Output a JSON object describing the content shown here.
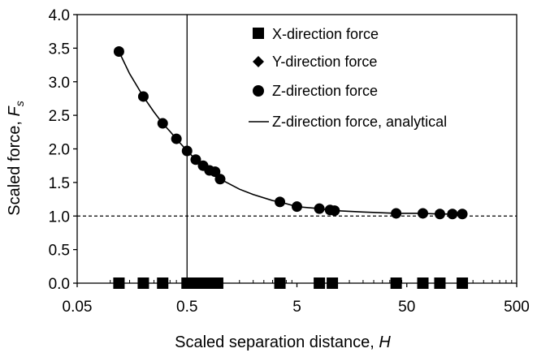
{
  "chart_data": {
    "type": "scatter",
    "xlabel": "Scaled separation distance, ",
    "xlabel_italic": "H",
    "ylabel": "Scaled force, ",
    "ylabel_italic": "F",
    "ylabel_sub": "s",
    "x_scale": "log",
    "xlim": [
      0.05,
      500
    ],
    "ylim": [
      0,
      4
    ],
    "x_ticks": [
      0.05,
      0.5,
      5,
      50,
      500
    ],
    "x_tick_labels": [
      "0.05",
      "0.5",
      "5",
      "50",
      "500"
    ],
    "y_ticks": [
      0,
      0.5,
      1,
      1.5,
      2,
      2.5,
      3,
      3.5,
      4
    ],
    "y_tick_labels": [
      "0.0",
      "0.5",
      "1.0",
      "1.5",
      "2.0",
      "2.5",
      "3.0",
      "3.5",
      "4.0"
    ],
    "grid": false,
    "reference_lines": [
      {
        "orientation": "horizontal",
        "value": 1.0,
        "style": "dashed"
      },
      {
        "orientation": "vertical",
        "value": 0.5,
        "style": "solid"
      }
    ],
    "legend_position": "top-right",
    "series": [
      {
        "name": "X-direction force",
        "marker": "square",
        "x": [
          0.12,
          0.2,
          0.3,
          0.5,
          0.55,
          0.6,
          0.75,
          0.85,
          0.95,
          3.5,
          8,
          10.5,
          40,
          70,
          100,
          160
        ],
        "y": [
          0,
          0,
          0,
          0,
          0,
          0,
          0,
          0,
          0,
          0,
          0,
          0,
          0,
          0,
          0,
          0
        ]
      },
      {
        "name": "Y-direction force",
        "marker": "diamond",
        "x": [
          0.12,
          0.2,
          0.3,
          0.5,
          0.55,
          0.6,
          0.75,
          0.85,
          0.95,
          3.5,
          8,
          10.5,
          40,
          70,
          100,
          160
        ],
        "y": [
          0,
          0,
          0,
          0,
          0,
          0,
          0,
          0,
          0,
          0,
          0,
          0,
          0,
          0,
          0,
          0
        ]
      },
      {
        "name": "Z-direction force",
        "marker": "circle",
        "x": [
          0.12,
          0.2,
          0.3,
          0.4,
          0.5,
          0.6,
          0.7,
          0.8,
          0.9,
          1.0,
          3.5,
          5.0,
          8.0,
          10.0,
          11.0,
          40,
          70,
          100,
          130,
          160
        ],
        "y": [
          3.45,
          2.78,
          2.38,
          2.15,
          1.97,
          1.84,
          1.75,
          1.68,
          1.66,
          1.55,
          1.21,
          1.14,
          1.11,
          1.09,
          1.08,
          1.04,
          1.04,
          1.03,
          1.03,
          1.03
        ]
      },
      {
        "name": "Z-direction force, analytical",
        "marker": "line",
        "x": [
          0.12,
          0.15,
          0.2,
          0.25,
          0.3,
          0.35,
          0.4,
          0.5,
          0.6,
          0.7,
          0.8,
          1.0,
          1.5,
          2,
          3,
          3.5,
          5,
          8,
          11,
          20,
          40,
          70,
          100,
          160
        ],
        "y": [
          3.45,
          3.12,
          2.78,
          2.55,
          2.38,
          2.26,
          2.15,
          1.97,
          1.84,
          1.75,
          1.68,
          1.55,
          1.4,
          1.32,
          1.23,
          1.21,
          1.14,
          1.11,
          1.08,
          1.06,
          1.04,
          1.04,
          1.03,
          1.03
        ]
      }
    ]
  }
}
